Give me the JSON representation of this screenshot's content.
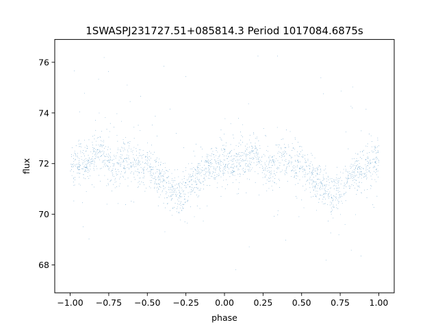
{
  "chart_data": {
    "type": "scatter",
    "title": "1SWASPJ231727.51+085814.3 Period 1017084.6875s",
    "xlabel": "phase",
    "ylabel": "flux",
    "xlim": [
      -1.1,
      1.1
    ],
    "ylim": [
      66.9,
      76.9
    ],
    "xticks": [
      -1.0,
      -0.75,
      -0.5,
      -0.25,
      0.0,
      0.25,
      0.5,
      0.75,
      1.0
    ],
    "xtick_labels": [
      "−1.00",
      "−0.75",
      "−0.50",
      "−0.25",
      "0.00",
      "0.25",
      "0.50",
      "0.75",
      "1.00"
    ],
    "yticks": [
      68,
      70,
      72,
      74,
      76
    ],
    "ytick_labels": [
      "68",
      "70",
      "72",
      "74",
      "76"
    ],
    "grid": false,
    "marker_color": "#1f77b4",
    "series": [
      {
        "points_summary": "dense light curve, phase folded and mirrored (-1 to 1), flux mostly between ~70 and ~74 with scattered outliers from ~67.5 to ~76.5",
        "x": [
          -1.0,
          -0.95,
          -0.9,
          -0.85,
          -0.8,
          -0.75,
          -0.7,
          -0.65,
          -0.6,
          -0.55,
          -0.5,
          -0.45,
          -0.4,
          -0.35,
          -0.3,
          -0.25,
          -0.2,
          -0.15,
          -0.1,
          -0.05,
          0.0,
          0.05,
          0.1,
          0.15,
          0.2,
          0.25,
          0.3,
          0.35,
          0.4,
          0.45,
          0.5,
          0.55,
          0.6,
          0.65,
          0.7,
          0.75,
          0.8,
          0.85,
          0.9,
          0.95,
          1.0
        ],
        "y": [
          72.1,
          72.0,
          71.9,
          72.3,
          72.5,
          72.0,
          71.8,
          72.2,
          72.1,
          71.9,
          72.0,
          71.6,
          71.3,
          71.0,
          70.8,
          71.1,
          71.5,
          71.6,
          71.9,
          72.0,
          72.1,
          72.0,
          71.9,
          72.3,
          72.5,
          72.0,
          71.8,
          72.2,
          72.1,
          71.9,
          72.0,
          71.6,
          71.3,
          71.0,
          70.8,
          71.1,
          71.5,
          71.6,
          71.9,
          72.0,
          72.1
        ]
      }
    ]
  }
}
